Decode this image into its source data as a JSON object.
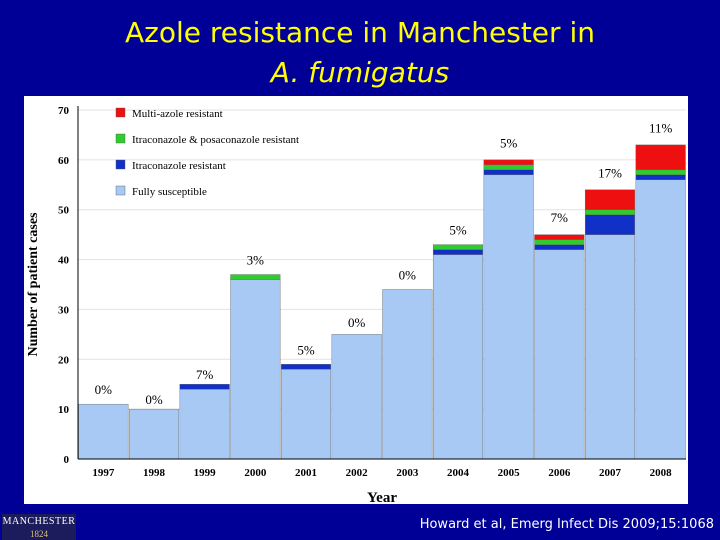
{
  "slide": {
    "title_line1": "Azole resistance in Manchester in",
    "title_line2": "A. fumigatus",
    "citation": "Howard et al, Emerg Infect Dis 2009;15:1068",
    "logo_name": "MANCHESTER",
    "logo_year": "1824"
  },
  "colors": {
    "background": "#000096",
    "title": "#ffff00",
    "fully_susceptible": "#a9c9f5",
    "itraconazole_resistant": "#1030c8",
    "itra_posa_resistant": "#2ecc2e",
    "multi_azole_resistant": "#ee1010"
  },
  "chart_data": {
    "type": "bar",
    "stacked": true,
    "title": "",
    "xlabel": "Year",
    "ylabel": "Number of patient cases",
    "ylim": [
      0,
      70
    ],
    "yticks": [
      "0",
      "10",
      "20",
      "30",
      "40",
      "50",
      "60",
      "70"
    ],
    "categories": [
      "1997",
      "1998",
      "1999",
      "2000",
      "2001",
      "2002",
      "2003",
      "2004",
      "2005",
      "2006",
      "2007",
      "2008"
    ],
    "series": [
      {
        "name": "Fully susceptible",
        "color_key": "fully_susceptible",
        "values": [
          11,
          10,
          14,
          36,
          18,
          25,
          34,
          41,
          57,
          42,
          45,
          56
        ]
      },
      {
        "name": "Itraconazole resistant",
        "color_key": "itraconazole_resistant",
        "values": [
          0,
          0,
          1,
          0,
          1,
          0,
          0,
          1,
          1,
          1,
          4,
          1
        ]
      },
      {
        "name": "Itraconazole & posaconazole resistant",
        "color_key": "itra_posa_resistant",
        "values": [
          0,
          0,
          0,
          1,
          0,
          0,
          0,
          1,
          1,
          1,
          1,
          1
        ]
      },
      {
        "name": "Multi-azole resistant",
        "color_key": "multi_azole_resistant",
        "values": [
          0,
          0,
          0,
          0,
          0,
          0,
          0,
          0,
          1,
          1,
          4,
          5
        ]
      }
    ],
    "legend_order": [
      "Multi-azole resistant",
      "Itraconazole & posaconazole resistant",
      "Itraconazole resistant",
      "Fully susceptible"
    ],
    "legend_position": "top-left",
    "annotations": [
      {
        "category": "1997",
        "text": "0%",
        "y": 13
      },
      {
        "category": "1998",
        "text": "0%",
        "y": 11
      },
      {
        "category": "1999",
        "text": "7%",
        "y": 16
      },
      {
        "category": "2001",
        "text": "5%",
        "y": 21
      },
      {
        "category": "2002",
        "text": "0%",
        "y": 26.5
      },
      {
        "category": "2003",
        "text": "0%",
        "y": 36
      },
      {
        "category": "2000",
        "text": "3%",
        "y": 39
      },
      {
        "category": "2004",
        "text": "5%",
        "y": 45
      },
      {
        "category": "2006",
        "text": "7%",
        "y": 47.5
      },
      {
        "category": "2005",
        "text": "5%",
        "y": 62.5
      },
      {
        "category": "2007",
        "text": "17%",
        "y": 56.5
      },
      {
        "category": "2008",
        "text": "11%",
        "y": 65.5
      }
    ]
  }
}
